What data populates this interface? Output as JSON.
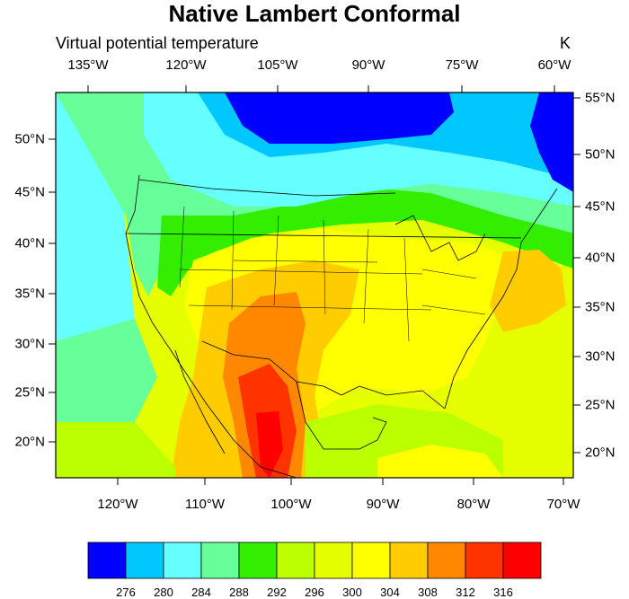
{
  "title": "Native Lambert Conformal",
  "left_title": "Virtual potential temperature",
  "right_title": "K",
  "top_lon_labels": [
    "135°W",
    "120°W",
    "105°W",
    "90°W",
    "75°W",
    "60°W"
  ],
  "bottom_lon_labels": [
    "120°W",
    "110°W",
    "100°W",
    "90°W",
    "80°W",
    "70°W"
  ],
  "left_lat_labels": [
    "50°N",
    "45°N",
    "40°N",
    "35°N",
    "30°N",
    "25°N",
    "20°N"
  ],
  "right_lat_labels": [
    "55°N",
    "50°N",
    "45°N",
    "40°N",
    "35°N",
    "30°N",
    "25°N",
    "20°N"
  ],
  "colorbar": {
    "colors": [
      "#0000ff",
      "#00c8ff",
      "#66ffff",
      "#66ff99",
      "#33ee00",
      "#bbff00",
      "#e6ff00",
      "#ffff00",
      "#ffcc00",
      "#ff8800",
      "#ff3300",
      "#ff0000"
    ],
    "labels": [
      "276",
      "280",
      "284",
      "288",
      "292",
      "296",
      "300",
      "304",
      "308",
      "312",
      "316"
    ]
  },
  "chart_data": {
    "type": "heatmap",
    "variable": "Virtual potential temperature",
    "units": "K",
    "projection": "Native Lambert Conformal",
    "levels": [
      276,
      280,
      284,
      288,
      292,
      296,
      300,
      304,
      308,
      312,
      316
    ]
  }
}
